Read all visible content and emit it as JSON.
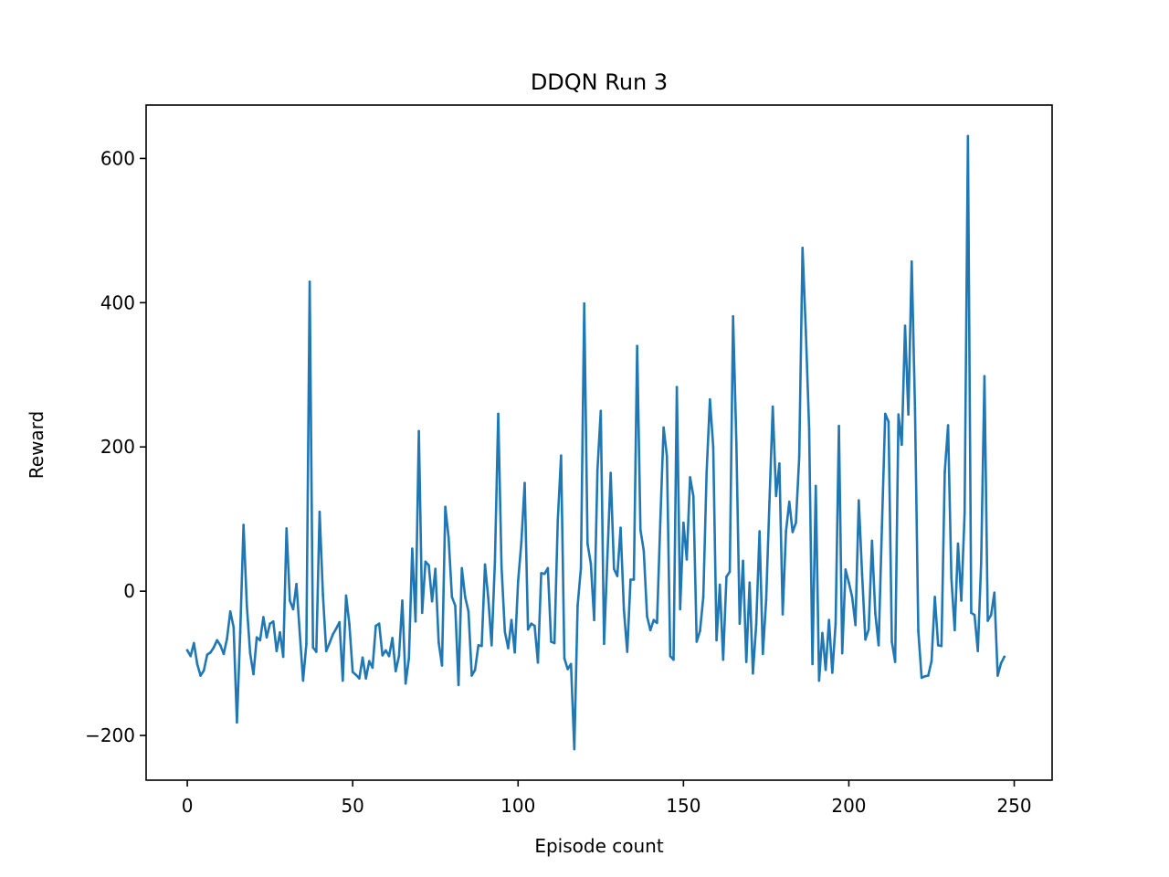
{
  "chart_data": {
    "type": "line",
    "title": "DDQN Run 3",
    "xlabel": "Episode count",
    "ylabel": "Reward",
    "xlim": [
      -12.45,
      261.45
    ],
    "ylim": [
      -262,
      674
    ],
    "xticks": [
      0,
      50,
      100,
      150,
      200,
      250
    ],
    "yticks": [
      -200,
      0,
      200,
      400,
      600
    ],
    "grid": false,
    "legend": "none",
    "color": "#1f77b4",
    "series": [
      {
        "name": "Reward",
        "x_start": 0,
        "x_step": 1,
        "values": [
          -82,
          -90,
          -72,
          -101,
          -117,
          -110,
          -88,
          -85,
          -78,
          -68,
          -75,
          -87,
          -66,
          -28,
          -50,
          -182,
          -57,
          92,
          -20,
          -86,
          -115,
          -64,
          -68,
          -36,
          -64,
          -45,
          -42,
          -83,
          -57,
          -91,
          87,
          -13,
          -25,
          10,
          -58,
          -124,
          -73,
          429,
          -78,
          -84,
          110,
          -5,
          -83,
          -72,
          -60,
          -52,
          -43,
          -124,
          -6,
          -46,
          -112,
          -116,
          -121,
          -92,
          -121,
          -97,
          -106,
          -48,
          -45,
          -89,
          -82,
          -90,
          -65,
          -111,
          -90,
          -13,
          -128,
          -93,
          59,
          -42,
          222,
          -30,
          41,
          36,
          -14,
          31,
          -71,
          -103,
          117,
          74,
          -8,
          -20,
          -130,
          32,
          -8,
          -28,
          -117,
          -109,
          -75,
          -76,
          37,
          -10,
          -75,
          41,
          246,
          34,
          -56,
          -79,
          -40,
          -85,
          13,
          68,
          150,
          -53,
          -45,
          -48,
          -99,
          25,
          24,
          32,
          -70,
          -72,
          98,
          188,
          -93,
          -108,
          -101,
          -219,
          -20,
          32,
          399,
          66,
          38,
          -40,
          168,
          250,
          -73,
          47,
          164,
          31,
          21,
          88,
          -26,
          -84,
          16,
          16,
          340,
          85,
          56,
          -35,
          -54,
          -40,
          -44,
          96,
          227,
          187,
          -90,
          -95,
          283,
          -25,
          95,
          44,
          158,
          132,
          -70,
          -55,
          -8,
          165,
          266,
          200,
          -68,
          9,
          -95,
          20,
          27,
          381,
          205,
          -45,
          42,
          -98,
          12,
          -114,
          -46,
          83,
          -87,
          -12,
          124,
          256,
          132,
          177,
          -32,
          83,
          124,
          82,
          95,
          186,
          476,
          360,
          225,
          -101,
          146,
          -124,
          -58,
          -109,
          -40,
          -113,
          -45,
          229,
          -86,
          30,
          12,
          -8,
          -47,
          126,
          24,
          -67,
          -53,
          70,
          -31,
          -75,
          89,
          246,
          235,
          -70,
          -98,
          245,
          203,
          368,
          245,
          457,
          253,
          -55,
          -120,
          -118,
          -117,
          -97,
          -8,
          -75,
          -76,
          165,
          230,
          18,
          -54,
          66,
          -13,
          108,
          631,
          -30,
          -33,
          -83,
          39,
          298,
          -41,
          -33,
          -2,
          -117,
          -100,
          -91
        ]
      }
    ]
  }
}
